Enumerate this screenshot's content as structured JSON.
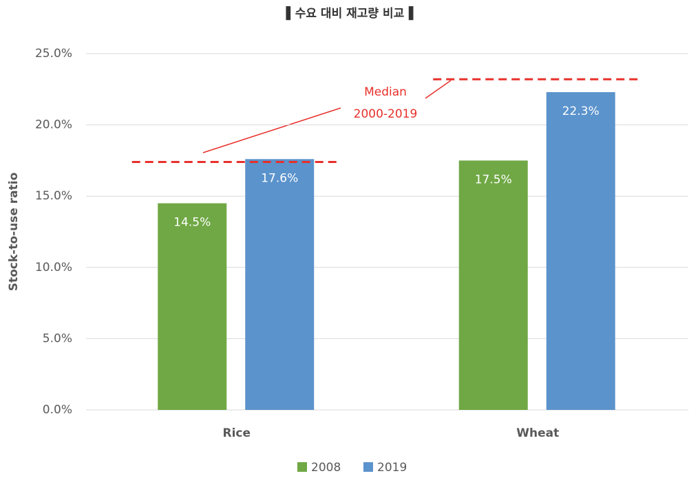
{
  "chart_data": {
    "type": "bar",
    "title": "▌수요 대비 재고량 비교▐",
    "y_label": "Stock-to-use ratio",
    "categories": [
      "Rice",
      "Wheat"
    ],
    "series": [
      {
        "name": "2008",
        "color": "#70a845",
        "values": [
          14.5,
          17.5
        ],
        "value_labels": [
          "14.5%",
          "17.5%"
        ]
      },
      {
        "name": "2019",
        "color": "#5b93cc",
        "values": [
          17.6,
          22.3
        ],
        "value_labels": [
          "17.6%",
          "22.3%"
        ]
      }
    ],
    "medians": [
      17.4,
      23.2
    ],
    "median_color": "#e8302b",
    "annotation": [
      "Median",
      "2000-2019"
    ],
    "ylim": [
      0,
      25
    ],
    "yticks": [
      {
        "value": 0,
        "label": "0.0%"
      },
      {
        "value": 5,
        "label": "5.0%"
      },
      {
        "value": 10,
        "label": "10.0%"
      },
      {
        "value": 15,
        "label": "15.0%"
      },
      {
        "value": 20,
        "label": "20.0%"
      },
      {
        "value": 25,
        "label": "25.0%"
      }
    ],
    "grid": true,
    "legend": "bottom"
  }
}
